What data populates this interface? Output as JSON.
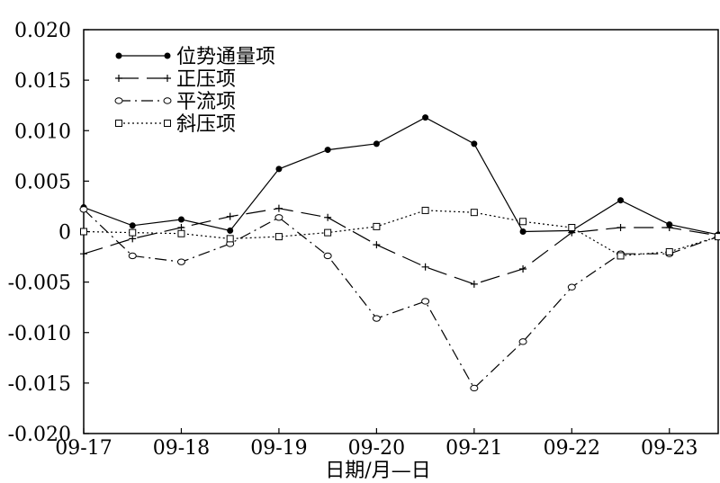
{
  "chart_data": {
    "type": "line",
    "xlabel": "日期/月—日",
    "ylabel": "",
    "ylim": [
      -0.02,
      0.02
    ],
    "y_ticks": [
      0.02,
      0.015,
      0.01,
      0.005,
      0,
      -0.005,
      -0.01,
      -0.015,
      -0.02
    ],
    "y_tick_labels": [
      "0.020",
      "0.015",
      "0.010",
      "0.005",
      "0",
      "-0.005",
      "-0.010",
      "-0.015",
      "-0.020"
    ],
    "x_ticks": [
      0,
      1,
      2,
      3,
      4,
      5,
      6
    ],
    "x_tick_labels": [
      "09-17",
      "09-18",
      "09-19",
      "09-20",
      "09-21",
      "09-22",
      "09-23"
    ],
    "xlim": [
      0,
      6.5
    ],
    "x": [
      0,
      0.5,
      1,
      1.5,
      2,
      2.5,
      3,
      3.5,
      4,
      4.5,
      5,
      5.5,
      6,
      6.5
    ],
    "grid": false,
    "legend_position": "top-left",
    "series": [
      {
        "name": "位势通量项",
        "marker": "filled-circle",
        "dash": "solid",
        "values": [
          0.0024,
          0.0006,
          0.0012,
          0.0001,
          0.0062,
          0.0081,
          0.0087,
          0.0113,
          0.0087,
          0.0,
          0.0001,
          0.0031,
          0.0007,
          -0.0003
        ]
      },
      {
        "name": "正压项",
        "marker": "plus",
        "dash": "long-dash",
        "values": [
          -0.0022,
          -0.0007,
          0.0004,
          0.0015,
          0.0023,
          0.0014,
          -0.0013,
          -0.0035,
          -0.0052,
          -0.0037,
          -0.0001,
          0.0004,
          0.0004,
          -0.0004
        ]
      },
      {
        "name": "平流项",
        "marker": "open-circle",
        "dash": "dash-dot",
        "values": [
          0.0022,
          -0.0024,
          -0.003,
          -0.0012,
          0.0014,
          -0.0024,
          -0.0086,
          -0.0069,
          -0.0155,
          -0.0109,
          -0.0055,
          -0.0022,
          -0.0022,
          -0.0005
        ]
      },
      {
        "name": "斜压项",
        "marker": "open-square",
        "dash": "dotted",
        "values": [
          0.0,
          -0.0001,
          -0.0002,
          -0.0007,
          -0.0005,
          -0.0001,
          0.0005,
          0.0021,
          0.0019,
          0.001,
          0.0004,
          -0.0024,
          -0.002,
          -0.0005
        ]
      }
    ]
  }
}
